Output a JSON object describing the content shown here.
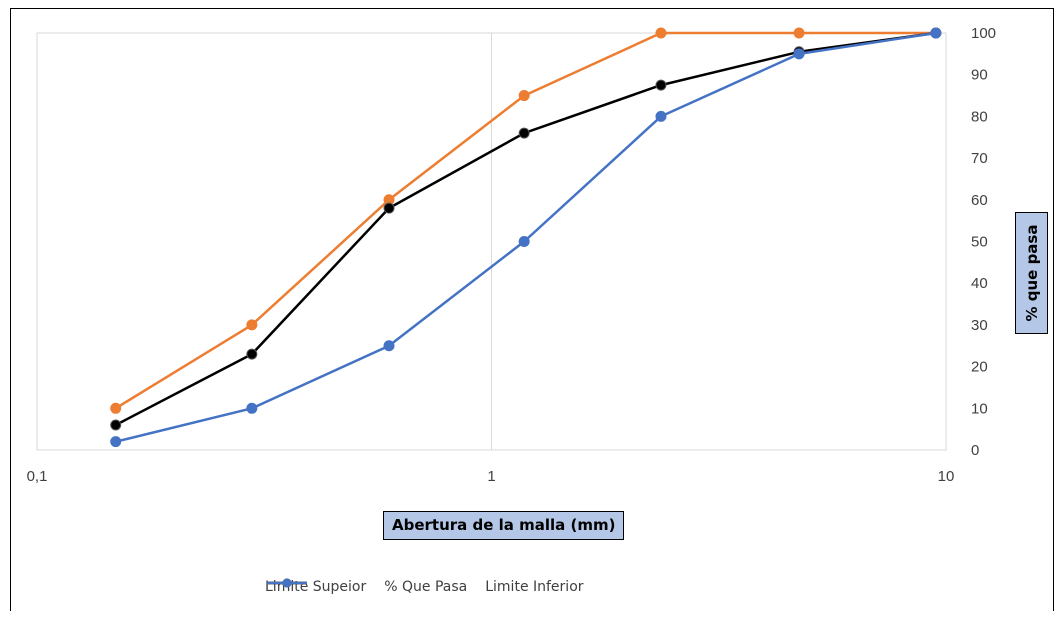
{
  "chart_data": {
    "type": "line",
    "xscale": "log",
    "xlim": [
      0.1,
      10
    ],
    "ylim": [
      0,
      100
    ],
    "xlabel": "Abertura de la malla (mm)",
    "ylabel": "% que pasa",
    "x_tick_labels": [
      "0,1",
      "1",
      "10"
    ],
    "y_tick_labels": [
      "0",
      "10",
      "20",
      "30",
      "40",
      "50",
      "60",
      "70",
      "80",
      "90",
      "100"
    ],
    "y_axis_position": "right",
    "grid": "vertical major gridlines",
    "legend_position": "bottom",
    "series": [
      {
        "name": "Limite Supeior",
        "color": "#ed7d31",
        "marker_color": "#ed7d31",
        "x": [
          0.149,
          0.297,
          0.595,
          1.18,
          2.36,
          4.75,
          9.5
        ],
        "y": [
          10,
          30,
          60,
          85,
          100,
          100,
          100
        ]
      },
      {
        "name": "% Que Pasa",
        "color": "#000000",
        "marker_color": "#000000",
        "x": [
          0.149,
          0.297,
          0.595,
          1.18,
          2.36,
          4.75,
          9.5
        ],
        "y": [
          6,
          23,
          58,
          76,
          87.5,
          95.5,
          100
        ]
      },
      {
        "name": "Limite Inferior",
        "color": "#4472c4",
        "marker_color": "#4472c4",
        "x": [
          0.149,
          0.297,
          0.595,
          1.18,
          2.36,
          4.75,
          9.5
        ],
        "y": [
          2,
          10,
          25,
          50,
          80,
          95,
          100
        ]
      }
    ]
  }
}
